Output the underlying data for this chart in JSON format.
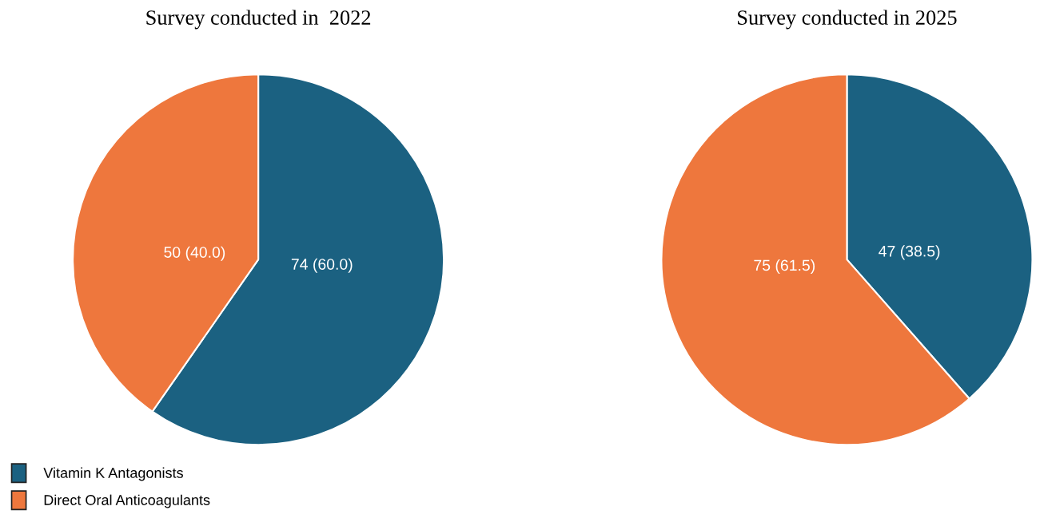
{
  "chart_data": [
    {
      "type": "pie",
      "title": "Survey conducted in  2022",
      "categories": [
        "Vitamin K Antagonists",
        "Direct Oral Anticoagulants"
      ],
      "values": [
        74,
        50
      ],
      "colors": [
        "#1b6181",
        "#ee773d"
      ],
      "value_labels": [
        "74 (60.0)",
        "50 (40.0)"
      ],
      "legend": "bottom left"
    },
    {
      "type": "pie",
      "title": "Survey conducted in 2025",
      "categories": [
        null,
        null
      ],
      "values": [
        47,
        75
      ],
      "colors": [
        "#1b6181",
        "#ee773d"
      ],
      "value_labels": [
        "47 (38.5)",
        "75 (61.5)"
      ]
    }
  ]
}
